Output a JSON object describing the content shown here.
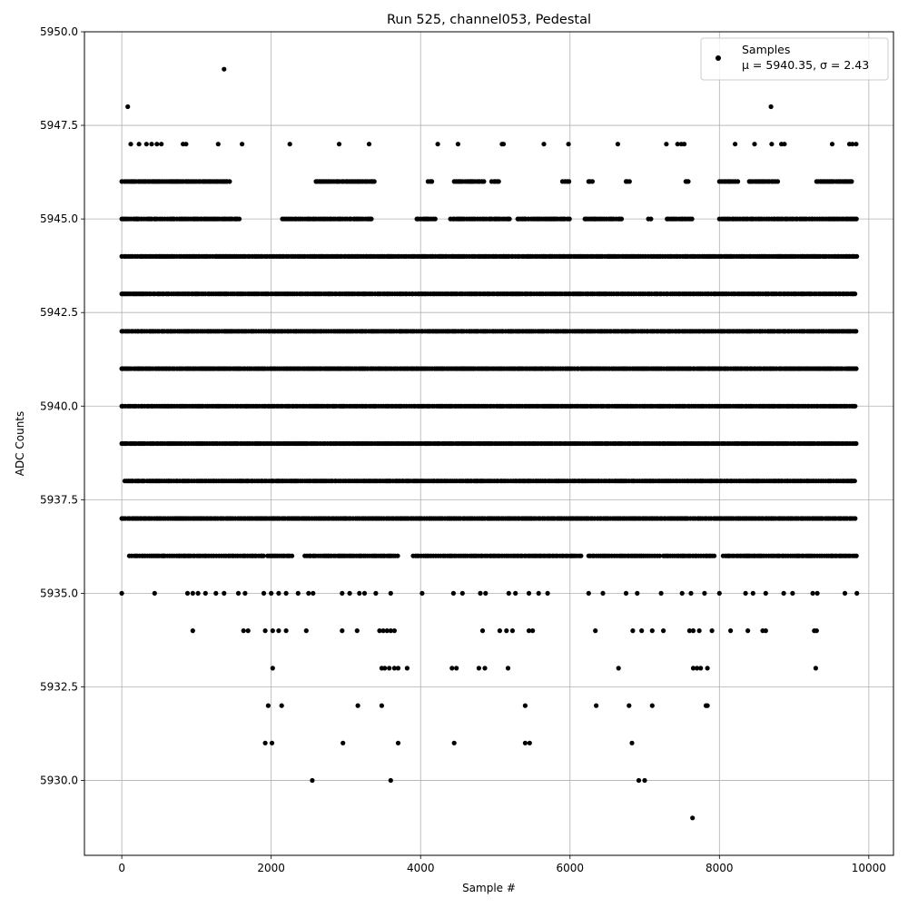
{
  "chart_data": {
    "type": "scatter",
    "title": "Run 525, channel053, Pedestal",
    "xlabel": "Sample #",
    "ylabel": "ADC Counts",
    "xlim": [
      -500,
      10330
    ],
    "ylim": [
      5928,
      5950
    ],
    "xticks": [
      0,
      2000,
      4000,
      6000,
      8000,
      10000
    ],
    "yticks": [
      5930.0,
      5932.5,
      5935.0,
      5937.5,
      5940.0,
      5942.5,
      5945.0,
      5947.5,
      5950.0
    ],
    "xtick_labels": [
      "0",
      "2000",
      "4000",
      "6000",
      "8000",
      "10000"
    ],
    "ytick_labels": [
      "5930.0",
      "5932.5",
      "5935.0",
      "5937.5",
      "5940.0",
      "5942.5",
      "5945.0",
      "5947.5",
      "5950.0"
    ],
    "grid": true,
    "legend": {
      "placement": "top-right",
      "marker_label": "Samples",
      "stats_label": "μ = 5940.35, σ = 2.43"
    },
    "series": [
      {
        "name": "Samples",
        "color": "#000000",
        "x_range": [
          0,
          9840
        ],
        "n_samples": 9840,
        "mean": 5940.35,
        "std": 2.43,
        "level_coverage": {
          "5937": [
            [
              0,
              9840
            ]
          ],
          "5938": [
            [
              40,
              9840
            ]
          ],
          "5939": [
            [
              0,
              9840
            ]
          ],
          "5940": [
            [
              0,
              9840
            ]
          ],
          "5941": [
            [
              0,
              9840
            ]
          ],
          "5942": [
            [
              0,
              9840
            ]
          ],
          "5943": [
            [
              0,
              9840
            ]
          ],
          "5944": [
            [
              0,
              9840
            ]
          ],
          "5945": [
            [
              0,
              1580
            ],
            [
              2150,
              3350
            ],
            [
              3950,
              4200
            ],
            [
              4400,
              5200
            ],
            [
              5300,
              6000
            ],
            [
              6200,
              6700
            ],
            [
              7050,
              7100
            ],
            [
              7300,
              7650
            ],
            [
              8000,
              9840
            ]
          ],
          "5936": [
            [
              100,
              1900
            ],
            [
              1950,
              2300
            ],
            [
              2450,
              3700
            ],
            [
              3900,
              6150
            ],
            [
              6250,
              7200
            ],
            [
              7250,
              7950
            ],
            [
              8050,
              9840
            ]
          ],
          "5946": [
            [
              0,
              1450
            ],
            [
              2600,
              3400
            ],
            [
              4100,
              4150
            ],
            [
              4450,
              4850
            ],
            [
              4950,
              5050
            ],
            [
              5900,
              6000
            ],
            [
              6250,
              6300
            ],
            [
              6750,
              6800
            ],
            [
              7550,
              7600
            ],
            [
              8000,
              8250
            ],
            [
              8400,
              8800
            ],
            [
              9300,
              9800
            ]
          ]
        },
        "sparse_points": [
          [
            0,
            5935
          ],
          [
            80,
            5948
          ],
          [
            1370,
            5949
          ],
          [
            8690,
            5948
          ],
          [
            120,
            5947
          ],
          [
            230,
            5947
          ],
          [
            330,
            5947
          ],
          [
            400,
            5947
          ],
          [
            470,
            5947
          ],
          [
            530,
            5947
          ],
          [
            820,
            5947
          ],
          [
            860,
            5947
          ],
          [
            1290,
            5947
          ],
          [
            1610,
            5947
          ],
          [
            2250,
            5947
          ],
          [
            2910,
            5947
          ],
          [
            3310,
            5947
          ],
          [
            4230,
            5947
          ],
          [
            4500,
            5947
          ],
          [
            5090,
            5947
          ],
          [
            5110,
            5947
          ],
          [
            5650,
            5947
          ],
          [
            5980,
            5947
          ],
          [
            6640,
            5947
          ],
          [
            7290,
            5947
          ],
          [
            7440,
            5947
          ],
          [
            7490,
            5947
          ],
          [
            7530,
            5947
          ],
          [
            8210,
            5947
          ],
          [
            8470,
            5947
          ],
          [
            8700,
            5947
          ],
          [
            8830,
            5947
          ],
          [
            8870,
            5947
          ],
          [
            9510,
            5947
          ],
          [
            9740,
            5947
          ],
          [
            9780,
            5947
          ],
          [
            9830,
            5947
          ],
          [
            440,
            5935
          ],
          [
            880,
            5935
          ],
          [
            950,
            5935
          ],
          [
            1020,
            5935
          ],
          [
            1120,
            5935
          ],
          [
            1260,
            5935
          ],
          [
            1370,
            5935
          ],
          [
            1560,
            5935
          ],
          [
            1650,
            5935
          ],
          [
            1900,
            5935
          ],
          [
            2000,
            5935
          ],
          [
            2100,
            5935
          ],
          [
            2200,
            5935
          ],
          [
            2360,
            5935
          ],
          [
            2500,
            5935
          ],
          [
            2560,
            5935
          ],
          [
            2950,
            5935
          ],
          [
            3050,
            5935
          ],
          [
            3180,
            5935
          ],
          [
            3250,
            5935
          ],
          [
            3400,
            5935
          ],
          [
            3600,
            5935
          ],
          [
            4020,
            5935
          ],
          [
            4440,
            5935
          ],
          [
            4560,
            5935
          ],
          [
            4800,
            5935
          ],
          [
            4870,
            5935
          ],
          [
            5180,
            5935
          ],
          [
            5270,
            5935
          ],
          [
            5450,
            5935
          ],
          [
            5580,
            5935
          ],
          [
            5700,
            5935
          ],
          [
            6250,
            5935
          ],
          [
            6440,
            5935
          ],
          [
            6750,
            5935
          ],
          [
            6900,
            5935
          ],
          [
            7220,
            5935
          ],
          [
            7500,
            5935
          ],
          [
            7620,
            5935
          ],
          [
            7800,
            5935
          ],
          [
            8000,
            5935
          ],
          [
            8350,
            5935
          ],
          [
            8450,
            5935
          ],
          [
            8620,
            5935
          ],
          [
            8860,
            5935
          ],
          [
            8980,
            5935
          ],
          [
            9250,
            5935
          ],
          [
            9310,
            5935
          ],
          [
            9680,
            5935
          ],
          [
            9840,
            5935
          ],
          [
            950,
            5934
          ],
          [
            1630,
            5934
          ],
          [
            1690,
            5934
          ],
          [
            1920,
            5934
          ],
          [
            2020,
            5934
          ],
          [
            2100,
            5934
          ],
          [
            2200,
            5934
          ],
          [
            2470,
            5934
          ],
          [
            2950,
            5934
          ],
          [
            3150,
            5934
          ],
          [
            3450,
            5934
          ],
          [
            3500,
            5934
          ],
          [
            3550,
            5934
          ],
          [
            3600,
            5934
          ],
          [
            3650,
            5934
          ],
          [
            4830,
            5934
          ],
          [
            5060,
            5934
          ],
          [
            5150,
            5934
          ],
          [
            5230,
            5934
          ],
          [
            5450,
            5934
          ],
          [
            5500,
            5934
          ],
          [
            6340,
            5934
          ],
          [
            6840,
            5934
          ],
          [
            6960,
            5934
          ],
          [
            7100,
            5934
          ],
          [
            7250,
            5934
          ],
          [
            7600,
            5934
          ],
          [
            7650,
            5934
          ],
          [
            7730,
            5934
          ],
          [
            7900,
            5934
          ],
          [
            8150,
            5934
          ],
          [
            8380,
            5934
          ],
          [
            8580,
            5934
          ],
          [
            8620,
            5934
          ],
          [
            9270,
            5934
          ],
          [
            9300,
            5934
          ],
          [
            2020,
            5933
          ],
          [
            3480,
            5933
          ],
          [
            3520,
            5933
          ],
          [
            3580,
            5933
          ],
          [
            3650,
            5933
          ],
          [
            3700,
            5933
          ],
          [
            3820,
            5933
          ],
          [
            4420,
            5933
          ],
          [
            4480,
            5933
          ],
          [
            4780,
            5933
          ],
          [
            4860,
            5933
          ],
          [
            5170,
            5933
          ],
          [
            6650,
            5933
          ],
          [
            7650,
            5933
          ],
          [
            7700,
            5933
          ],
          [
            7750,
            5933
          ],
          [
            7840,
            5933
          ],
          [
            9290,
            5933
          ],
          [
            1960,
            5932
          ],
          [
            2140,
            5932
          ],
          [
            3160,
            5932
          ],
          [
            3480,
            5932
          ],
          [
            5400,
            5932
          ],
          [
            6350,
            5932
          ],
          [
            6790,
            5932
          ],
          [
            7100,
            5932
          ],
          [
            7820,
            5932
          ],
          [
            7840,
            5932
          ],
          [
            1920,
            5931
          ],
          [
            2010,
            5931
          ],
          [
            2960,
            5931
          ],
          [
            3700,
            5931
          ],
          [
            4450,
            5931
          ],
          [
            5400,
            5931
          ],
          [
            5460,
            5931
          ],
          [
            6830,
            5931
          ],
          [
            2550,
            5930
          ],
          [
            3600,
            5930
          ],
          [
            6920,
            5930
          ],
          [
            7000,
            5930
          ],
          [
            7640,
            5929
          ]
        ]
      }
    ]
  }
}
